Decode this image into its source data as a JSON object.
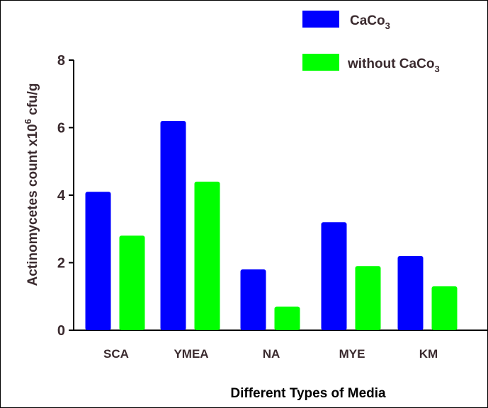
{
  "chart_data": {
    "type": "bar",
    "categories": [
      "SCA",
      "YMEA",
      "NA",
      "MYE",
      "KM"
    ],
    "series": [
      {
        "name_parts": {
          "base": "CaCo",
          "sub": "3"
        },
        "color": "#0000ff",
        "values": [
          4.1,
          6.2,
          1.8,
          3.2,
          2.2
        ]
      },
      {
        "name_parts": {
          "base": "without CaCo",
          "sub": "3"
        },
        "color": "#00ff00",
        "values": [
          2.8,
          4.4,
          0.7,
          1.9,
          1.3
        ]
      }
    ],
    "ylabel_parts": {
      "base": "Actinomycetes count x10",
      "sup": "6",
      "rest": " cfu/g"
    },
    "xlabel": "Different Types of Media",
    "ylim": [
      0,
      8
    ],
    "yticks": [
      0,
      2,
      4,
      6,
      8
    ],
    "grid": false,
    "legend_position": "top-right"
  }
}
